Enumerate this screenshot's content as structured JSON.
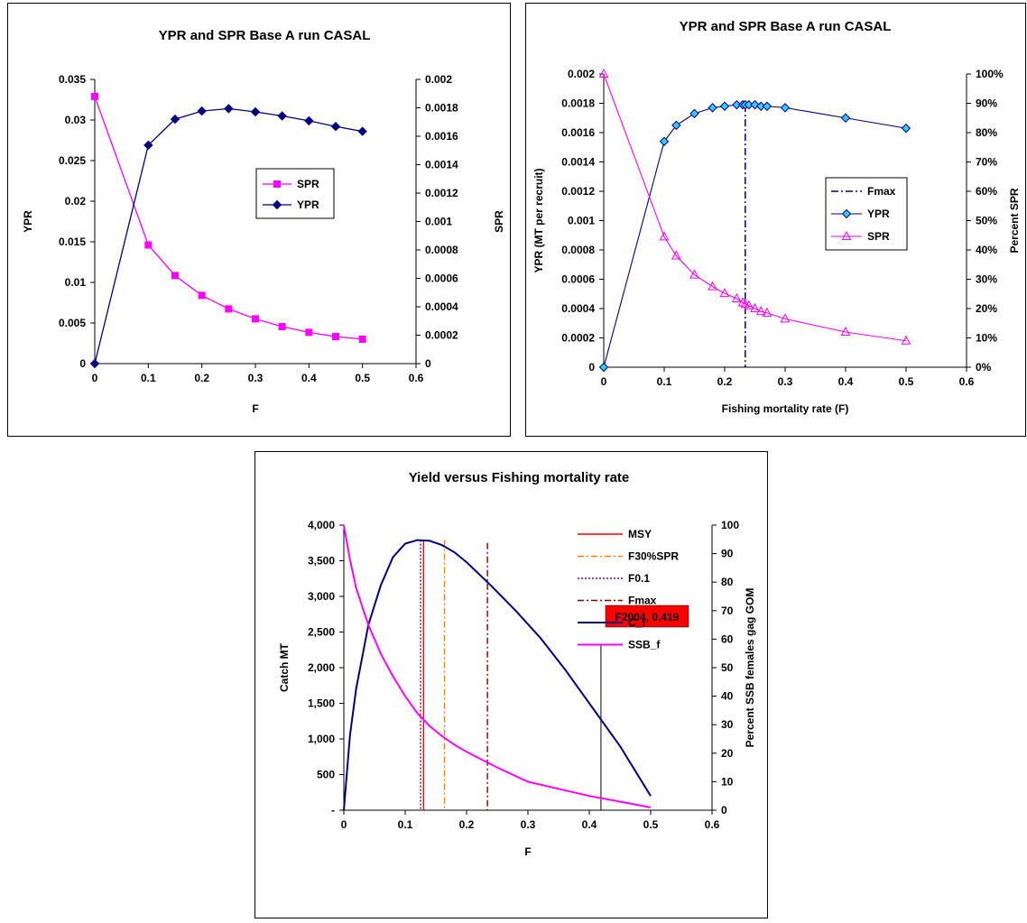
{
  "chart_data": [
    {
      "type": "line",
      "title": "YPR and SPR Base A run CASAL",
      "xlabel": "F",
      "ylabel": "YPR",
      "y2label": "SPR",
      "xlim": [
        0,
        0.6
      ],
      "xticks": [
        "0",
        "0.1",
        "0.2",
        "0.3",
        "0.4",
        "0.5",
        "0.6"
      ],
      "ylim": [
        0,
        0.035
      ],
      "yticks": [
        "0",
        "0.005",
        "0.01",
        "0.015",
        "0.02",
        "0.025",
        "0.03",
        "0.035"
      ],
      "y2lim": [
        0,
        0.002
      ],
      "y2ticks": [
        "0",
        "0.0002",
        "0.0004",
        "0.0006",
        "0.0008",
        "0.001",
        "0.0012",
        "0.0014",
        "0.0016",
        "0.0018",
        "0.002"
      ],
      "legend_position": "center-right",
      "series": [
        {
          "name": "SPR",
          "axis": "y2",
          "color": "#ff00ff",
          "marker": "square",
          "x": [
            0,
            0.1,
            0.15,
            0.2,
            0.25,
            0.3,
            0.35,
            0.4,
            0.45,
            0.5
          ],
          "y": [
            0.00188,
            0.000835,
            0.00062,
            0.00048,
            0.000385,
            0.000315,
            0.00026,
            0.00022,
            0.00019,
            0.000172
          ]
        },
        {
          "name": "YPR",
          "axis": "y",
          "color": "#000080",
          "marker": "diamond",
          "x": [
            0,
            0.1,
            0.15,
            0.2,
            0.25,
            0.3,
            0.35,
            0.4,
            0.45,
            0.5
          ],
          "y": [
            0,
            0.0269,
            0.0301,
            0.0311,
            0.0314,
            0.031,
            0.0305,
            0.0299,
            0.0292,
            0.0286
          ]
        }
      ]
    },
    {
      "type": "line",
      "title": "YPR and SPR Base A run CASAL",
      "xlabel": "Fishing mortality rate (F)",
      "ylabel": "YPR (MT per recruit)",
      "y2label": "Percent SPR",
      "xlim": [
        0,
        0.6
      ],
      "xticks": [
        "0",
        "0.1",
        "0.2",
        "0.3",
        "0.4",
        "0.5",
        "0.6"
      ],
      "ylim": [
        0,
        0.002
      ],
      "yticks": [
        "0",
        "0.0002",
        "0.0004",
        "0.0006",
        "0.0008",
        "0.001",
        "0.0012",
        "0.0014",
        "0.0016",
        "0.0018",
        "0.002"
      ],
      "y2lim": [
        0,
        100
      ],
      "y2ticks": [
        "0%",
        "10%",
        "20%",
        "30%",
        "40%",
        "50%",
        "60%",
        "70%",
        "80%",
        "90%",
        "100%"
      ],
      "legend_position": "center-right",
      "fmax": 0.234,
      "series": [
        {
          "name": "Fmax",
          "style": "dash-dot",
          "color": "#000080"
        },
        {
          "name": "YPR",
          "axis": "y",
          "color": "#000080",
          "marker": "diamond",
          "marker_fill": "#33ccff",
          "x": [
            0,
            0.1,
            0.12,
            0.15,
            0.18,
            0.2,
            0.22,
            0.23,
            0.234,
            0.24,
            0.25,
            0.26,
            0.27,
            0.3,
            0.4,
            0.5
          ],
          "y": [
            0,
            0.00154,
            0.00165,
            0.00173,
            0.00177,
            0.00178,
            0.00179,
            0.00179,
            0.00179,
            0.00179,
            0.00179,
            0.00178,
            0.00178,
            0.00177,
            0.0017,
            0.00163
          ]
        },
        {
          "name": "SPR",
          "axis": "y2",
          "color": "#ff00ff",
          "marker": "triangle",
          "x": [
            0,
            0.1,
            0.12,
            0.15,
            0.18,
            0.2,
            0.22,
            0.23,
            0.234,
            0.24,
            0.25,
            0.26,
            0.27,
            0.3,
            0.4,
            0.5
          ],
          "y": [
            100,
            44.5,
            38,
            31.5,
            27.5,
            25.2,
            23.4,
            22,
            21.5,
            21,
            20,
            19,
            18.5,
            16.5,
            12,
            9
          ]
        }
      ]
    },
    {
      "type": "line",
      "title": "Yield versus Fishing mortality rate",
      "xlabel": "F",
      "ylabel": "Catch MT",
      "y2label": "Percent SSB females gag GOM",
      "xlim": [
        0,
        0.6
      ],
      "xticks": [
        "0",
        "0.1",
        "0.2",
        "0.3",
        "0.4",
        "0.5",
        "0.6"
      ],
      "ylim": [
        0,
        4000
      ],
      "yticks": [
        "-",
        "500",
        "1,000",
        "1,500",
        "2,000",
        "2,500",
        "3,000",
        "3,500",
        "4,000"
      ],
      "y2lim": [
        0,
        100
      ],
      "y2ticks": [
        "0",
        "10",
        "20",
        "30",
        "40",
        "50",
        "60",
        "70",
        "80",
        "90",
        "100"
      ],
      "legend_position": "top-right",
      "reference_lines": [
        {
          "name": "MSY",
          "x": 0.13,
          "color": "#ff0000",
          "style": "solid"
        },
        {
          "name": "F30%SPR",
          "x": 0.164,
          "color": "#ff8000",
          "style": "dash-dot"
        },
        {
          "name": "F0.1",
          "x": 0.125,
          "color": "#800080",
          "style": "dot"
        },
        {
          "name": "Fmax",
          "x": 0.234,
          "color": "#800000",
          "style": "dash-dot"
        }
      ],
      "annotation": {
        "text": "F2004, 0.419",
        "x": 0.419,
        "color": "#ff0000"
      },
      "series": [
        {
          "name": "C_f",
          "axis": "y",
          "color": "#000080",
          "x": [
            0,
            0.01,
            0.02,
            0.04,
            0.06,
            0.08,
            0.1,
            0.12,
            0.14,
            0.16,
            0.18,
            0.2,
            0.24,
            0.28,
            0.32,
            0.36,
            0.4,
            0.45,
            0.5
          ],
          "y": [
            0,
            1050,
            1700,
            2600,
            3150,
            3550,
            3740,
            3790,
            3780,
            3720,
            3620,
            3480,
            3150,
            2800,
            2420,
            1980,
            1500,
            900,
            200
          ]
        },
        {
          "name": "SSB_f",
          "axis": "y2",
          "color": "#ff00ff",
          "x": [
            0,
            0.01,
            0.02,
            0.04,
            0.06,
            0.08,
            0.1,
            0.12,
            0.14,
            0.16,
            0.18,
            0.2,
            0.25,
            0.3,
            0.35,
            0.4,
            0.45,
            0.5
          ],
          "y": [
            100,
            88,
            78,
            65,
            55,
            47,
            40,
            34,
            29.5,
            26,
            23,
            20.5,
            15,
            10,
            7.5,
            5,
            3,
            1
          ]
        }
      ]
    }
  ]
}
